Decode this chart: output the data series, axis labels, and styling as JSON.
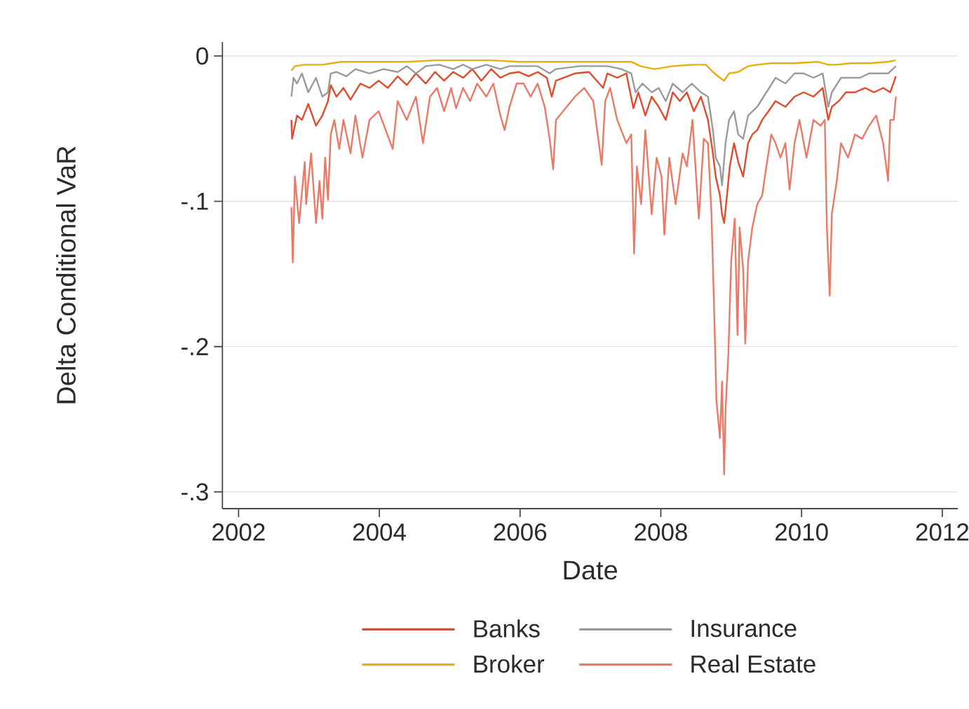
{
  "chart_data": {
    "type": "line",
    "xlabel": "Date",
    "ylabel": "Delta Conditional VaR",
    "xlim": [
      2001.77,
      2012.22
    ],
    "ylim": [
      -0.3115,
      0.0096
    ],
    "xticks": [
      2002,
      2004,
      2006,
      2008,
      2010,
      2012
    ],
    "yticks": [
      0,
      {
        "value": -0.1,
        "label": "-.1"
      },
      {
        "value": -0.2,
        "label": "-.2"
      },
      {
        "value": -0.3,
        "label": "-.3"
      }
    ],
    "grid": "y",
    "legend": "bottom",
    "series": [
      {
        "name": "Banks",
        "color": "#e34a2b",
        "x": [
          2002.75,
          2002.76,
          2002.83,
          2002.9,
          2002.99,
          2003.1,
          2003.19,
          2003.27,
          2003.31,
          2003.39,
          2003.49,
          2003.59,
          2003.73,
          2003.86,
          2003.99,
          2004.12,
          2004.26,
          2004.39,
          2004.52,
          2004.66,
          2004.79,
          2004.92,
          2005.05,
          2005.19,
          2005.32,
          2005.45,
          2005.59,
          2005.72,
          2005.85,
          2005.98,
          2006.12,
          2006.25,
          2006.38,
          2006.45,
          2006.51,
          2006.78,
          2006.98,
          2007.18,
          2007.24,
          2007.38,
          2007.51,
          2007.61,
          2007.68,
          2007.78,
          2007.87,
          2007.97,
          2008.07,
          2008.17,
          2008.27,
          2008.37,
          2008.47,
          2008.57,
          2008.67,
          2008.74,
          2008.78,
          2008.84,
          2008.87,
          2008.9,
          2008.94,
          2008.98,
          2009.04,
          2009.1,
          2009.17,
          2009.24,
          2009.3,
          2009.37,
          2009.44,
          2009.53,
          2009.63,
          2009.77,
          2009.9,
          2010.03,
          2010.17,
          2010.3,
          2010.38,
          2010.43,
          2010.53,
          2010.63,
          2010.76,
          2010.9,
          2011.03,
          2011.16,
          2011.26,
          2011.34
        ],
        "values": [
          -0.044,
          -0.057,
          -0.041,
          -0.044,
          -0.033,
          -0.048,
          -0.041,
          -0.031,
          -0.02,
          -0.028,
          -0.022,
          -0.03,
          -0.019,
          -0.022,
          -0.017,
          -0.022,
          -0.014,
          -0.02,
          -0.012,
          -0.019,
          -0.011,
          -0.017,
          -0.011,
          -0.015,
          -0.009,
          -0.017,
          -0.009,
          -0.015,
          -0.012,
          -0.011,
          -0.014,
          -0.011,
          -0.015,
          -0.028,
          -0.017,
          -0.012,
          -0.011,
          -0.022,
          -0.012,
          -0.015,
          -0.012,
          -0.036,
          -0.025,
          -0.041,
          -0.028,
          -0.035,
          -0.044,
          -0.025,
          -0.031,
          -0.025,
          -0.038,
          -0.028,
          -0.044,
          -0.067,
          -0.083,
          -0.096,
          -0.109,
          -0.115,
          -0.096,
          -0.076,
          -0.06,
          -0.073,
          -0.083,
          -0.06,
          -0.054,
          -0.051,
          -0.044,
          -0.038,
          -0.031,
          -0.035,
          -0.028,
          -0.025,
          -0.028,
          -0.022,
          -0.044,
          -0.035,
          -0.031,
          -0.025,
          -0.025,
          -0.022,
          -0.025,
          -0.022,
          -0.025,
          -0.014
        ]
      },
      {
        "name": "Insurance",
        "color": "#9b9b9b",
        "x": [
          2002.75,
          2002.78,
          2002.83,
          2002.9,
          2002.99,
          2003.1,
          2003.19,
          2003.27,
          2003.31,
          2003.39,
          2003.53,
          2003.66,
          2003.86,
          2004.06,
          2004.26,
          2004.39,
          2004.52,
          2004.66,
          2004.85,
          2005.05,
          2005.19,
          2005.32,
          2005.52,
          2005.72,
          2005.85,
          2006.05,
          2006.25,
          2006.42,
          2006.51,
          2006.85,
          2007.11,
          2007.24,
          2007.44,
          2007.58,
          2007.64,
          2007.74,
          2007.87,
          2007.97,
          2008.07,
          2008.17,
          2008.31,
          2008.44,
          2008.57,
          2008.67,
          2008.74,
          2008.78,
          2008.84,
          2008.87,
          2008.92,
          2008.97,
          2009.04,
          2009.1,
          2009.17,
          2009.24,
          2009.37,
          2009.5,
          2009.63,
          2009.77,
          2009.9,
          2010.03,
          2010.17,
          2010.3,
          2010.38,
          2010.43,
          2010.56,
          2010.7,
          2010.83,
          2010.96,
          2011.1,
          2011.23,
          2011.34
        ],
        "values": [
          -0.028,
          -0.015,
          -0.019,
          -0.012,
          -0.025,
          -0.015,
          -0.028,
          -0.025,
          -0.012,
          -0.011,
          -0.014,
          -0.009,
          -0.012,
          -0.009,
          -0.011,
          -0.007,
          -0.012,
          -0.007,
          -0.006,
          -0.009,
          -0.006,
          -0.009,
          -0.006,
          -0.009,
          -0.007,
          -0.007,
          -0.007,
          -0.012,
          -0.009,
          -0.007,
          -0.007,
          -0.007,
          -0.009,
          -0.012,
          -0.025,
          -0.019,
          -0.025,
          -0.022,
          -0.031,
          -0.019,
          -0.025,
          -0.019,
          -0.025,
          -0.028,
          -0.051,
          -0.07,
          -0.076,
          -0.089,
          -0.06,
          -0.044,
          -0.038,
          -0.054,
          -0.057,
          -0.041,
          -0.035,
          -0.025,
          -0.015,
          -0.019,
          -0.012,
          -0.012,
          -0.015,
          -0.012,
          -0.035,
          -0.025,
          -0.015,
          -0.015,
          -0.015,
          -0.012,
          -0.012,
          -0.012,
          -0.007
        ]
      },
      {
        "name": "Broker",
        "color": "#e8ae0c",
        "x": [
          2002.75,
          2002.8,
          2002.93,
          2003.06,
          2003.19,
          2003.33,
          2003.46,
          2003.73,
          2003.99,
          2004.39,
          2004.79,
          2005.19,
          2005.59,
          2005.98,
          2006.38,
          2006.98,
          2007.24,
          2007.58,
          2007.71,
          2007.91,
          2008.17,
          2008.44,
          2008.64,
          2008.74,
          2008.84,
          2008.9,
          2008.97,
          2009.1,
          2009.24,
          2009.37,
          2009.57,
          2009.9,
          2010.23,
          2010.38,
          2010.5,
          2010.7,
          2010.96,
          2011.23,
          2011.34
        ],
        "values": [
          -0.01,
          -0.007,
          -0.006,
          -0.006,
          -0.006,
          -0.005,
          -0.004,
          -0.004,
          -0.004,
          -0.004,
          -0.003,
          -0.003,
          -0.003,
          -0.004,
          -0.004,
          -0.004,
          -0.004,
          -0.004,
          -0.007,
          -0.009,
          -0.007,
          -0.006,
          -0.006,
          -0.011,
          -0.015,
          -0.017,
          -0.012,
          -0.011,
          -0.007,
          -0.006,
          -0.005,
          -0.005,
          -0.004,
          -0.006,
          -0.006,
          -0.005,
          -0.005,
          -0.004,
          -0.003
        ]
      },
      {
        "name": "Real Estate",
        "color": "#ea7a66",
        "x": [
          2002.75,
          2002.77,
          2002.8,
          2002.86,
          2002.94,
          2002.96,
          2003.03,
          2003.1,
          2003.15,
          2003.19,
          2003.23,
          2003.27,
          2003.31,
          2003.36,
          2003.43,
          2003.49,
          2003.59,
          2003.66,
          2003.76,
          2003.86,
          2003.99,
          2004.09,
          2004.19,
          2004.26,
          2004.39,
          2004.52,
          2004.62,
          2004.72,
          2004.82,
          2004.92,
          2005.02,
          2005.09,
          2005.19,
          2005.29,
          2005.39,
          2005.52,
          2005.62,
          2005.72,
          2005.78,
          2005.85,
          2005.95,
          2006.05,
          2006.15,
          2006.25,
          2006.35,
          2006.42,
          2006.47,
          2006.51,
          2006.78,
          2006.91,
          2007.04,
          2007.16,
          2007.21,
          2007.28,
          2007.38,
          2007.51,
          2007.58,
          2007.62,
          2007.66,
          2007.72,
          2007.78,
          2007.87,
          2007.94,
          2008.01,
          2008.05,
          2008.12,
          2008.21,
          2008.31,
          2008.37,
          2008.45,
          2008.54,
          2008.61,
          2008.67,
          2008.72,
          2008.76,
          2008.79,
          2008.84,
          2008.87,
          2008.9,
          2008.92,
          2008.96,
          2009.0,
          2009.05,
          2009.09,
          2009.12,
          2009.17,
          2009.2,
          2009.24,
          2009.3,
          2009.37,
          2009.44,
          2009.5,
          2009.57,
          2009.63,
          2009.7,
          2009.77,
          2009.83,
          2009.9,
          2009.97,
          2010.07,
          2010.17,
          2010.27,
          2010.33,
          2010.36,
          2010.4,
          2010.43,
          2010.5,
          2010.56,
          2010.66,
          2010.76,
          2010.86,
          2010.96,
          2011.06,
          2011.16,
          2011.23,
          2011.26,
          2011.31,
          2011.34
        ],
        "values": [
          -0.104,
          -0.142,
          -0.083,
          -0.115,
          -0.073,
          -0.102,
          -0.067,
          -0.115,
          -0.086,
          -0.112,
          -0.07,
          -0.099,
          -0.054,
          -0.044,
          -0.064,
          -0.044,
          -0.067,
          -0.041,
          -0.07,
          -0.044,
          -0.038,
          -0.051,
          -0.064,
          -0.031,
          -0.044,
          -0.028,
          -0.06,
          -0.028,
          -0.022,
          -0.038,
          -0.022,
          -0.036,
          -0.022,
          -0.031,
          -0.019,
          -0.028,
          -0.019,
          -0.041,
          -0.051,
          -0.035,
          -0.019,
          -0.019,
          -0.028,
          -0.019,
          -0.035,
          -0.057,
          -0.078,
          -0.044,
          -0.028,
          -0.022,
          -0.031,
          -0.075,
          -0.031,
          -0.022,
          -0.044,
          -0.06,
          -0.054,
          -0.136,
          -0.076,
          -0.102,
          -0.051,
          -0.109,
          -0.07,
          -0.083,
          -0.123,
          -0.07,
          -0.102,
          -0.067,
          -0.076,
          -0.044,
          -0.112,
          -0.057,
          -0.06,
          -0.109,
          -0.179,
          -0.237,
          -0.263,
          -0.224,
          -0.288,
          -0.243,
          -0.205,
          -0.141,
          -0.112,
          -0.192,
          -0.118,
          -0.147,
          -0.198,
          -0.141,
          -0.118,
          -0.102,
          -0.096,
          -0.076,
          -0.054,
          -0.06,
          -0.07,
          -0.06,
          -0.092,
          -0.06,
          -0.044,
          -0.07,
          -0.044,
          -0.048,
          -0.044,
          -0.118,
          -0.165,
          -0.109,
          -0.086,
          -0.06,
          -0.07,
          -0.054,
          -0.057,
          -0.048,
          -0.041,
          -0.06,
          -0.086,
          -0.044,
          -0.044,
          -0.028
        ]
      }
    ]
  }
}
